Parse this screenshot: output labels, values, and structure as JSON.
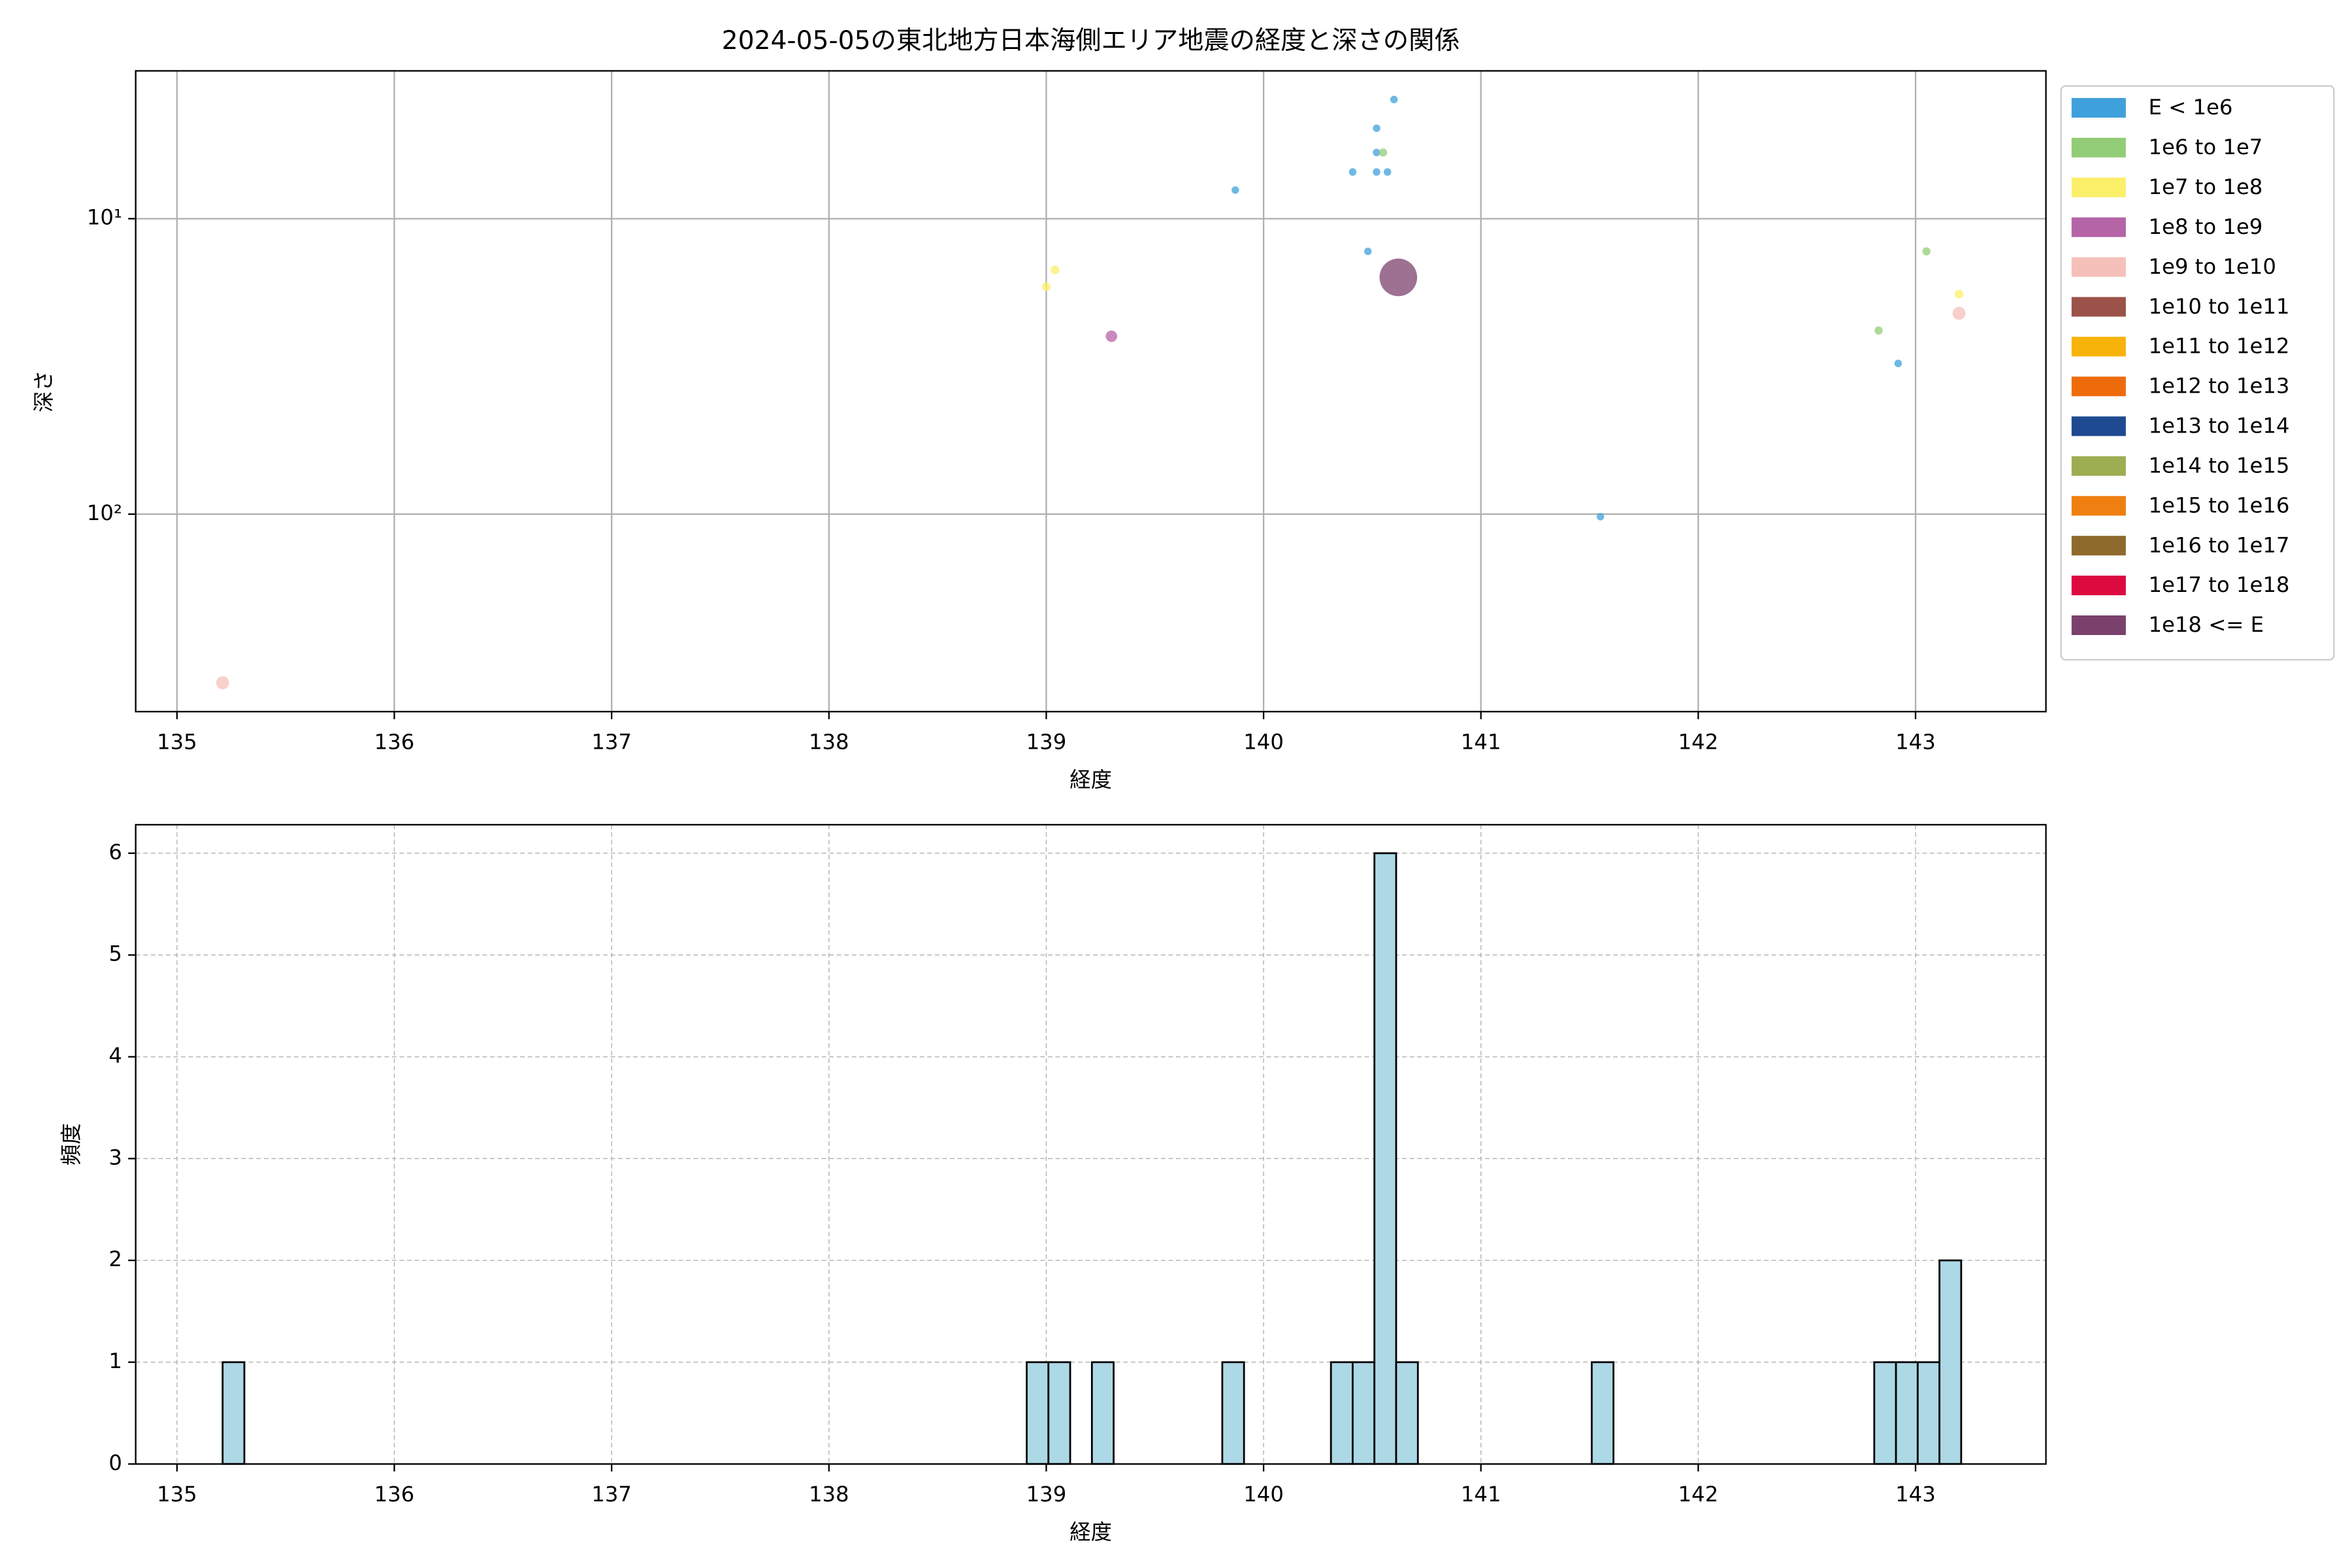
{
  "chart_data": [
    {
      "type": "scatter",
      "title": "2024-05-05の東北地方日本海側エリア地震の経度と深さの関係",
      "xlabel": "経度",
      "ylabel": "深さ",
      "yscale": "log",
      "xlim": [
        134.81,
        143.6
      ],
      "xticks": [
        135,
        136,
        137,
        138,
        139,
        140,
        141,
        142,
        143
      ],
      "ylim": [
        466,
        3.16
      ],
      "yticks": [
        {
          "value": 10,
          "label": "10¹"
        },
        {
          "value": 100,
          "label": "10²"
        }
      ],
      "grid": true,
      "grid_linestyle": "solid",
      "legend": "outside upper right",
      "series": [
        {
          "name": "E < 1e6",
          "color": "#3ea1db",
          "marker_size": 12,
          "x": [
            140.6,
            140.52,
            140.52,
            140.41,
            140.52,
            140.57,
            139.87,
            140.48,
            142.92,
            141.55
          ],
          "y": [
            3.95,
            4.94,
            5.97,
            6.95,
            6.95,
            6.95,
            8.0,
            12.9,
            30.9,
            102
          ]
        },
        {
          "name": "1e6 to 1e7",
          "color": "#93cc76",
          "marker_size": 14,
          "x": [
            140.55,
            143.05,
            142.83
          ],
          "y": [
            5.97,
            12.9,
            23.9
          ]
        },
        {
          "name": "1e7 to 1e8",
          "color": "#fcef6a",
          "marker_size": 16,
          "x": [
            139.04,
            139.0,
            143.2
          ],
          "y": [
            14.9,
            17.0,
            18.0
          ]
        },
        {
          "name": "1e8 to 1e9",
          "color": "#b564a6",
          "marker_size": 28,
          "x": [
            139.3
          ],
          "y": [
            25.0
          ]
        },
        {
          "name": "1e9 to 1e10",
          "color": "#f5c0b9",
          "marker_size": 36,
          "x": [
            143.2,
            135.21
          ],
          "y": [
            20.9,
            372
          ]
        },
        {
          "name": "1e10 to 1e11",
          "color": "#9a5249",
          "marker_size": 50,
          "x": [],
          "y": []
        },
        {
          "name": "1e11 to 1e12",
          "color": "#f8b30b",
          "marker_size": 60,
          "x": [],
          "y": []
        },
        {
          "name": "1e12 to 1e13",
          "color": "#ee6b0c",
          "marker_size": 80,
          "x": [],
          "y": []
        },
        {
          "name": "1e13 to 1e14",
          "color": "#1e4a91",
          "marker_size": 100,
          "x": [],
          "y": []
        },
        {
          "name": "1e14 to 1e15",
          "color": "#9cad52",
          "marker_size": 130,
          "x": [],
          "y": []
        },
        {
          "name": "1e15 to 1e16",
          "color": "#ef7f11",
          "marker_size": 160,
          "x": [],
          "y": []
        },
        {
          "name": "1e16 to 1e17",
          "color": "#8e6b2c",
          "marker_size": 200,
          "x": [],
          "y": []
        },
        {
          "name": "1e17 to 1e18",
          "color": "#dd0a3f",
          "marker_size": 250,
          "x": [],
          "y": []
        },
        {
          "name": "1e18 <= E",
          "color": "#7b416d",
          "marker_size": 300,
          "x": [
            140.62
          ],
          "y": [
            15.8
          ]
        }
      ]
    },
    {
      "type": "histogram",
      "xlabel": "経度",
      "ylabel": "頻度",
      "color": "#add8e6",
      "edgecolor": "#000000",
      "xlim": [
        134.81,
        143.6
      ],
      "xticks": [
        135,
        136,
        137,
        138,
        139,
        140,
        141,
        142,
        143
      ],
      "ylim": [
        0,
        6.28
      ],
      "yticks": [
        0,
        1,
        2,
        3,
        4,
        5,
        6
      ],
      "grid": true,
      "grid_linestyle": "dashed",
      "bins": [
        135.21,
        135.31,
        135.41,
        135.51,
        135.61,
        135.71,
        135.81,
        135.91,
        136.01,
        136.11,
        136.21,
        136.31,
        136.41,
        136.51,
        136.61,
        136.71,
        136.81,
        136.91,
        137.01,
        137.11,
        137.21,
        137.31,
        137.41,
        137.51,
        137.61,
        137.71,
        137.81,
        137.91,
        138.01,
        138.11,
        138.21,
        138.31,
        138.41,
        138.51,
        138.61,
        138.71,
        138.81,
        138.91,
        139.01,
        139.11,
        139.21,
        139.31,
        139.41,
        139.51,
        139.61,
        139.71,
        139.81,
        139.91,
        140.01,
        140.11,
        140.21,
        140.31,
        140.41,
        140.51,
        140.61,
        140.71,
        140.81,
        140.91,
        141.01,
        141.11,
        141.21,
        141.31,
        141.41,
        141.51,
        141.61,
        141.71,
        141.81,
        141.91,
        142.01,
        142.11,
        142.21,
        142.31,
        142.41,
        142.51,
        142.61,
        142.71,
        142.81,
        142.91,
        143.01,
        143.11,
        143.21
      ],
      "counts": [
        1,
        0,
        0,
        0,
        0,
        0,
        0,
        0,
        0,
        0,
        0,
        0,
        0,
        0,
        0,
        0,
        0,
        0,
        0,
        0,
        0,
        0,
        0,
        0,
        0,
        0,
        0,
        0,
        0,
        0,
        0,
        0,
        0,
        0,
        0,
        0,
        0,
        1,
        1,
        0,
        1,
        0,
        0,
        0,
        0,
        0,
        1,
        0,
        0,
        0,
        0,
        1,
        1,
        6,
        1,
        0,
        0,
        0,
        0,
        0,
        0,
        0,
        0,
        1,
        0,
        0,
        0,
        0,
        0,
        0,
        0,
        0,
        0,
        0,
        0,
        0,
        1,
        1,
        1,
        2
      ]
    }
  ]
}
